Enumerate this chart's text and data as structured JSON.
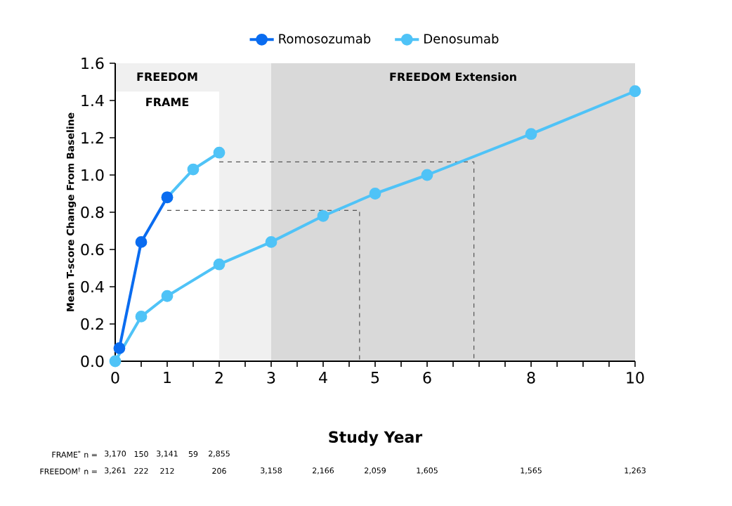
{
  "chart_data": {
    "type": "line",
    "xlabel": "Study Year",
    "ylabel": "Mean T-score Change From Baseline",
    "xlim": [
      0,
      10
    ],
    "ylim": [
      0,
      1.6
    ],
    "xticks": [
      0,
      {
        "value": 0.5,
        "label": null
      },
      1,
      {
        "value": 1.5,
        "label": null
      },
      2,
      {
        "value": 2.5,
        "label": null
      },
      3,
      {
        "value": 3.5,
        "label": null
      },
      4,
      {
        "value": 4.5,
        "label": null
      },
      5,
      {
        "value": 5.5,
        "label": null
      },
      6,
      {
        "value": 6.5,
        "label": null
      },
      {
        "value": 7,
        "label": null
      },
      {
        "value": 7.5,
        "label": null
      },
      8,
      {
        "value": 8.5,
        "label": null
      },
      {
        "value": 9,
        "label": null
      },
      {
        "value": 9.5,
        "label": null
      },
      10
    ],
    "yticks": [
      {
        "value": 0,
        "label": "0.0"
      },
      0.2,
      0.4,
      0.6,
      0.8,
      {
        "value": 1,
        "label": "1.0"
      },
      1.2,
      1.4,
      1.6
    ],
    "marker": "circle",
    "legend": "top",
    "grid": false,
    "bands": [
      {
        "axis": "x",
        "from": 0,
        "to": 3,
        "label": "FREEDOM",
        "color": "#f0f0f0"
      },
      {
        "axis": "x",
        "from": 3,
        "to": 10,
        "label": "FREEDOM Extension",
        "color": "#d9d9d9"
      },
      {
        "axis": "x",
        "from": 0,
        "to": 2,
        "label": "FRAME",
        "color": "#ffffff"
      }
    ],
    "series": [
      {
        "type": "line",
        "line_style": "dashed",
        "marker": "none",
        "color": "#555555",
        "x": [
          1,
          4.7,
          4.7
        ],
        "values": [
          0.81,
          0.81,
          0
        ]
      },
      {
        "type": "line",
        "line_style": "dashed",
        "marker": "none",
        "color": "#555555",
        "x": [
          2,
          6.9,
          6.9
        ],
        "values": [
          1.07,
          1.07,
          0
        ]
      },
      {
        "color": "#4fc3f7",
        "x": [
          1,
          1.5,
          2
        ],
        "values": [
          0.88,
          1.03,
          1.12
        ]
      },
      {
        "name": "Denosumab",
        "color": "#4fc3f7",
        "x": [
          0,
          0.5,
          1,
          2,
          3,
          4,
          5,
          6,
          8,
          10
        ],
        "values": [
          0,
          0.24,
          0.35,
          0.52,
          0.64,
          0.78,
          0.9,
          1.0,
          1.22,
          1.45
        ]
      },
      {
        "name": "Romosozumab",
        "color": "#0a6cf0",
        "x": [
          0.08,
          0.5,
          1
        ],
        "values": [
          0.07,
          0.64,
          0.88
        ]
      }
    ],
    "annotations": [
      "FRAME$^{*}$ n =",
      "3,170",
      "150",
      "3,141",
      "59",
      "2,855",
      "FREEDOM$^{†}$ n =",
      "3,261",
      "222",
      "212",
      "206",
      "3,158",
      "2,166",
      "2,059",
      "1,605",
      "1,565",
      "1,263"
    ]
  }
}
